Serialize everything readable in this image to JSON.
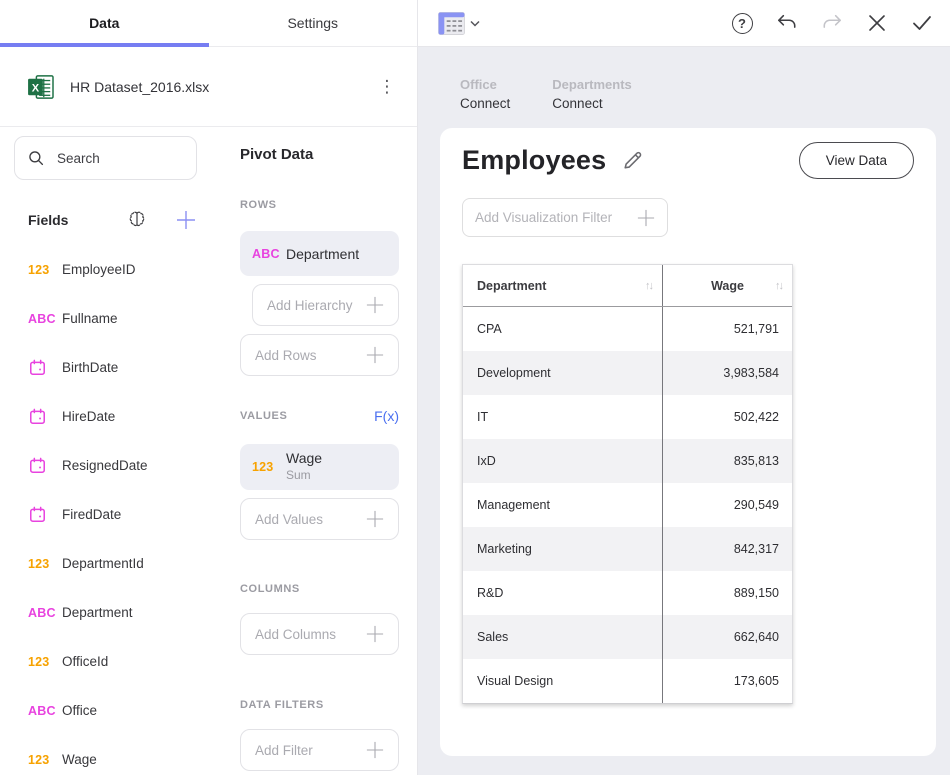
{
  "tabs": {
    "data": "Data",
    "settings": "Settings"
  },
  "dataset": {
    "name": "HR Dataset_2016.xlsx"
  },
  "fields_panel": {
    "search_placeholder": "Search",
    "title": "Fields",
    "number_badge": "123",
    "text_badge": "ABC",
    "fields": [
      {
        "type": "number",
        "label": "EmployeeID"
      },
      {
        "type": "text",
        "label": "Fullname"
      },
      {
        "type": "date",
        "label": "BirthDate"
      },
      {
        "type": "date",
        "label": "HireDate"
      },
      {
        "type": "date",
        "label": "ResignedDate"
      },
      {
        "type": "date",
        "label": "FiredDate"
      },
      {
        "type": "number",
        "label": "DepartmentId"
      },
      {
        "type": "text",
        "label": "Department"
      },
      {
        "type": "number",
        "label": "OfficeId"
      },
      {
        "type": "text",
        "label": "Office"
      },
      {
        "type": "number",
        "label": "Wage"
      }
    ]
  },
  "pivot_panel": {
    "title": "Pivot Data",
    "rows_label": "ROWS",
    "row_field": {
      "badge": "ABC",
      "label": "Department"
    },
    "add_hierarchy": "Add Hierarchy",
    "add_rows": "Add Rows",
    "values_label": "VALUES",
    "fx_label": "F(x)",
    "value_field": {
      "badge": "123",
      "label": "Wage",
      "aggregation": "Sum"
    },
    "add_values": "Add Values",
    "columns_label": "COLUMNS",
    "add_columns": "Add Columns",
    "filters_label": "DATA FILTERS",
    "add_filter": "Add Filter"
  },
  "toolbar": {
    "help_glyph": "?",
    "icons": [
      "pivot-grid-picker",
      "chevron-down",
      "help",
      "undo",
      "redo",
      "close",
      "confirm"
    ]
  },
  "canvas": {
    "sources": [
      {
        "type": "Office",
        "action": "Connect"
      },
      {
        "type": "Departments",
        "action": "Connect"
      }
    ],
    "title": "Employees",
    "view_data_label": "View Data",
    "viz_filter_placeholder": "Add Visualization Filter",
    "table": {
      "columns": [
        "Department",
        "Wage"
      ],
      "rows": [
        [
          "CPA",
          "521,791"
        ],
        [
          "Development",
          "3,983,584"
        ],
        [
          "IT",
          "502,422"
        ],
        [
          "IxD",
          "835,813"
        ],
        [
          "Management",
          "290,549"
        ],
        [
          "Marketing",
          "842,317"
        ],
        [
          "R&D",
          "889,150"
        ],
        [
          "Sales",
          "662,640"
        ],
        [
          "Visual Design",
          "173,605"
        ]
      ]
    }
  },
  "colors": {
    "accent": "#767df2",
    "number_field": "#f7a200",
    "text_field": "#e843df",
    "date_field": "#e843df",
    "fx_link": "#4a6ff0",
    "canvas_background": "#ecedf2",
    "zebra_row": "#f2f2f4"
  }
}
